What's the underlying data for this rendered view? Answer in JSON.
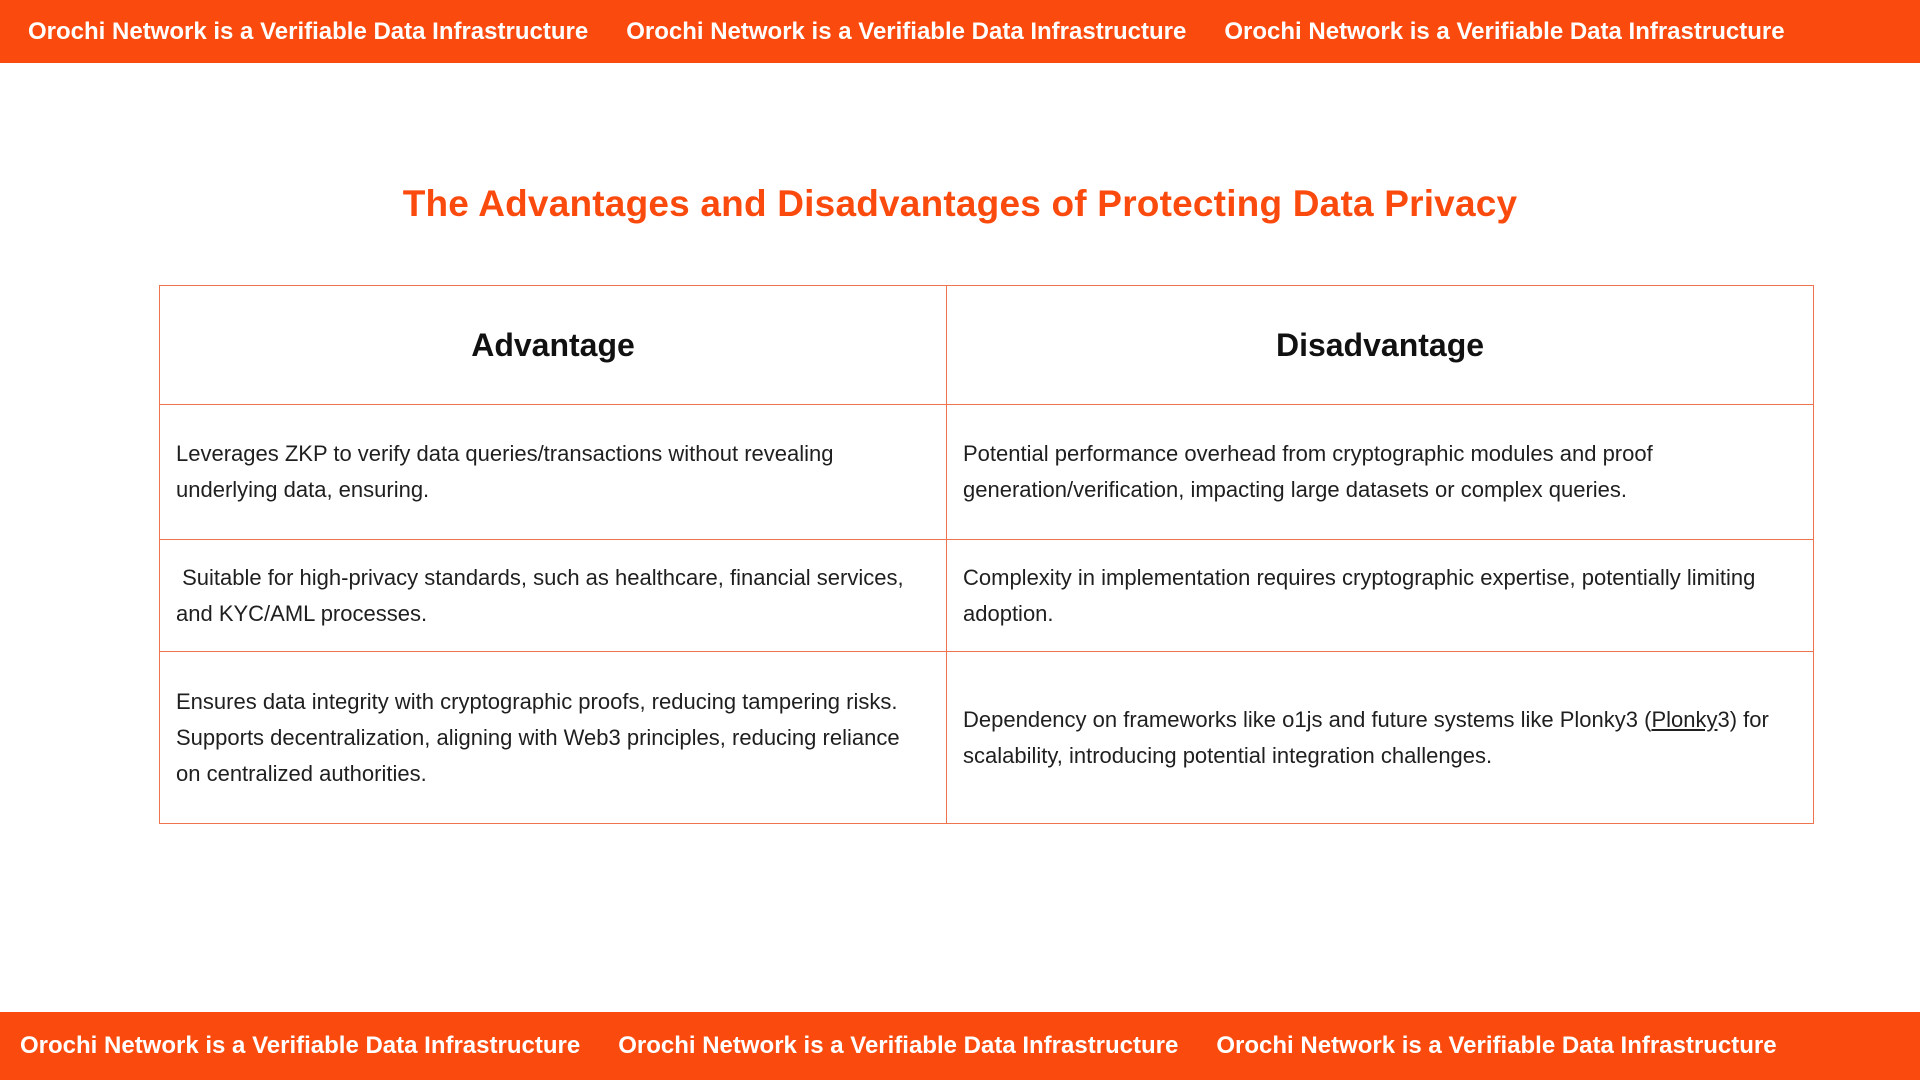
{
  "colors": {
    "accent_orange": "#fb4a0e",
    "table_border": "#ee7450",
    "body_text": "#1f1f1f",
    "banner_text": "#ffffff"
  },
  "top_banner": {
    "text": "Orochi Network is a Verifiable Data Infrastructure"
  },
  "bottom_banner": {
    "text": "Orochi Network is a Verifiable Data Infrastructure"
  },
  "title": "The Advantages and Disadvantages of Protecting Data Privacy",
  "table": {
    "headers": {
      "advantage": "Advantage",
      "disadvantage": "Disadvantage"
    },
    "rows": [
      {
        "advantage": "Leverages ZKP to verify data queries/transactions without revealing underlying data, ensuring.",
        "disadvantage": "Potential performance overhead from cryptographic modules and proof generation/verification, impacting large datasets or complex queries."
      },
      {
        "advantage": " Suitable for high-privacy standards, such as healthcare, financial services, and KYC/AML processes.",
        "disadvantage": "Complexity in implementation requires cryptographic expertise, potentially limiting adoption."
      },
      {
        "advantage": "Ensures data integrity with cryptographic proofs, reducing tampering risks.\nSupports decentralization, aligning with Web3 principles, reducing reliance on centralized authorities.",
        "disadvantage_prefix": "Dependency on frameworks like o1js and future systems like Plonky3 (",
        "disadvantage_link": "Plonky",
        "disadvantage_suffix": "3) for scalability, introducing potential integration challenges."
      }
    ]
  }
}
